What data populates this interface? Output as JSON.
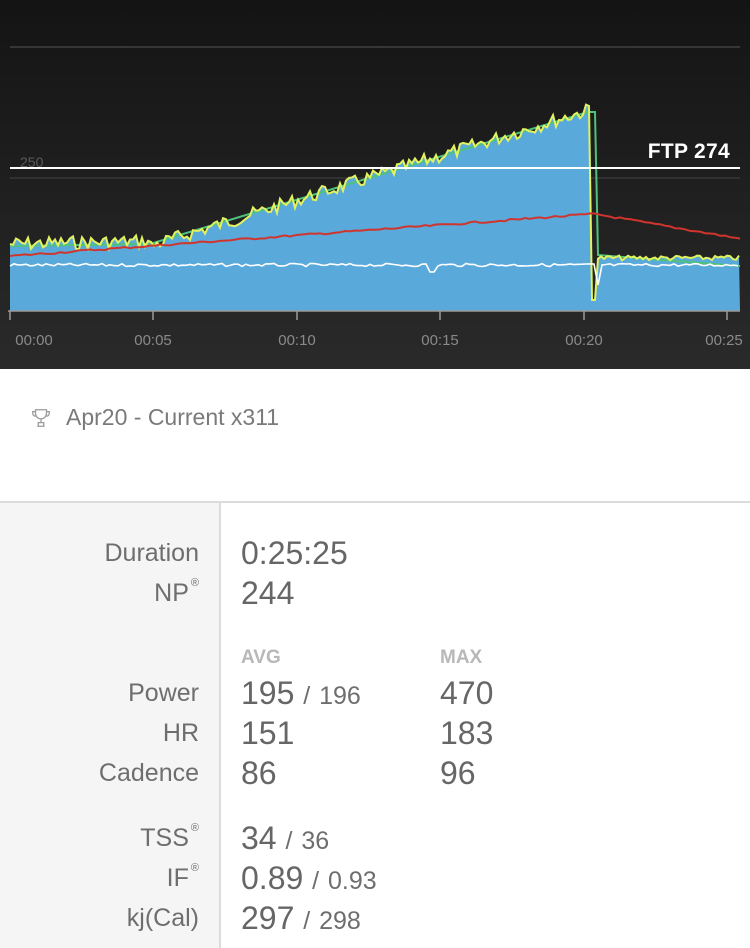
{
  "chart": {
    "ftp_label": "FTP 274",
    "y_gridline_label": "250",
    "time_ticks": [
      "00:00",
      "00:05",
      "00:10",
      "00:15",
      "00:20",
      "00:25"
    ],
    "colors": {
      "power_fill": "#5aa9db",
      "power_line": "#e2f25e",
      "target_line": "#4ec27a",
      "heart_rate": "#d0352d",
      "cadence": "#ffffff",
      "ftp_line": "#ffffff"
    }
  },
  "workout": {
    "title": "Apr20 - Current x311",
    "icon": "trophy-icon"
  },
  "stats": {
    "duration_label": "Duration",
    "duration_value": "0:25:25",
    "np_label": "NP",
    "np_value": "244",
    "registered_mark": "®",
    "avg_header": "AVG",
    "max_header": "MAX",
    "power_label": "Power",
    "power_avg": "195",
    "power_sep": "/",
    "power_avg2": "196",
    "power_max": "470",
    "hr_label": "HR",
    "hr_avg": "151",
    "hr_max": "183",
    "cadence_label": "Cadence",
    "cadence_avg": "86",
    "cadence_max": "96",
    "tss_label": "TSS",
    "tss_value": "34",
    "tss_sep": "/",
    "tss_value2": "36",
    "if_label": "IF",
    "if_value": "0.89",
    "if_sep": "/",
    "if_value2": "0.93",
    "kj_label": "kj(Cal)",
    "kj_value": "297",
    "kj_sep": "/",
    "kj_value2": "298"
  }
}
